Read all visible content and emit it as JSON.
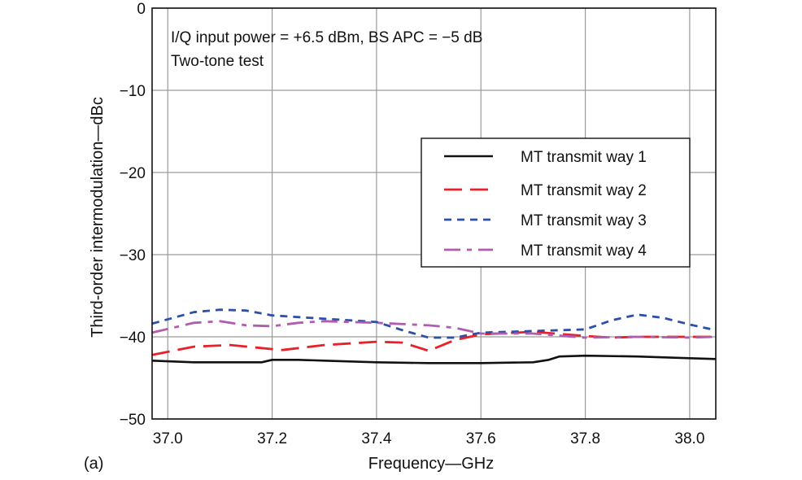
{
  "panel_label": "(a)",
  "chart_data": {
    "type": "line",
    "title": "",
    "xlabel": "Frequency—GHz",
    "ylabel": "Third-order intermodulation—dBc",
    "xlim": [
      36.97,
      38.05
    ],
    "ylim": [
      -50,
      0
    ],
    "x_ticks": [
      37.0,
      37.2,
      37.4,
      37.6,
      37.8,
      38.0
    ],
    "x_tick_labels": [
      "37.0",
      "37.2",
      "37.4",
      "37.6",
      "37.8",
      "38.0"
    ],
    "y_ticks": [
      0,
      -10,
      -20,
      -30,
      -40,
      -50
    ],
    "y_tick_labels": [
      "0",
      "−10",
      "−20",
      "−30",
      "−40",
      "−50"
    ],
    "grid": true,
    "annotations": [
      "I/Q input power = +6.5 dBm, BS APC = −5 dB",
      "Two-tone test"
    ],
    "legend_position": "right-middle",
    "series": [
      {
        "name": "MT transmit way 1",
        "color": "#111111",
        "dash": "solid",
        "x": [
          36.97,
          37.05,
          37.12,
          37.18,
          37.2,
          37.25,
          37.3,
          37.4,
          37.5,
          37.6,
          37.7,
          37.73,
          37.75,
          37.8,
          37.9,
          38.0,
          38.05
        ],
        "y": [
          -42.9,
          -43.1,
          -43.1,
          -43.1,
          -42.8,
          -42.8,
          -42.9,
          -43.1,
          -43.2,
          -43.2,
          -43.1,
          -42.8,
          -42.4,
          -42.3,
          -42.4,
          -42.6,
          -42.7
        ]
      },
      {
        "name": "MT transmit way 2",
        "color": "#e8202a",
        "dash": "long",
        "x": [
          36.97,
          37.05,
          37.12,
          37.2,
          37.22,
          37.3,
          37.4,
          37.45,
          37.5,
          37.55,
          37.6,
          37.7,
          37.8,
          37.85,
          37.9,
          38.0,
          38.05
        ],
        "y": [
          -42.2,
          -41.2,
          -41.0,
          -41.5,
          -41.6,
          -41.0,
          -40.6,
          -40.7,
          -41.7,
          -40.4,
          -39.7,
          -39.4,
          -39.9,
          -40.1,
          -40.0,
          -40.0,
          -40.0
        ]
      },
      {
        "name": "MT transmit way 3",
        "color": "#2d4fa8",
        "dash": "short",
        "x": [
          36.97,
          37.05,
          37.1,
          37.15,
          37.2,
          37.3,
          37.4,
          37.45,
          37.5,
          37.55,
          37.6,
          37.7,
          37.8,
          37.85,
          37.9,
          37.95,
          38.0,
          38.05
        ],
        "y": [
          -38.4,
          -37.0,
          -36.7,
          -36.8,
          -37.4,
          -37.8,
          -38.2,
          -39.2,
          -40.1,
          -40.1,
          -39.5,
          -39.3,
          -39.1,
          -38.0,
          -37.3,
          -37.7,
          -38.5,
          -39.2
        ]
      },
      {
        "name": "MT transmit way 4",
        "color": "#b15cae",
        "dash": "dashdot",
        "x": [
          36.97,
          37.05,
          37.1,
          37.15,
          37.2,
          37.25,
          37.3,
          37.4,
          37.5,
          37.55,
          37.6,
          37.7,
          37.8,
          37.9,
          38.0,
          38.05
        ],
        "y": [
          -39.5,
          -38.3,
          -38.1,
          -38.6,
          -38.7,
          -38.3,
          -38.1,
          -38.3,
          -38.6,
          -38.9,
          -39.6,
          -39.6,
          -40.1,
          -40.0,
          -40.1,
          -40.0
        ]
      }
    ]
  }
}
